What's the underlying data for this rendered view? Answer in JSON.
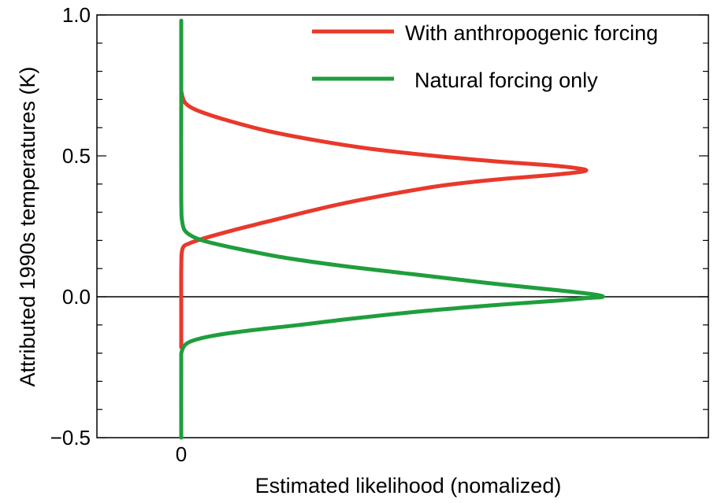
{
  "chart_data": {
    "type": "line",
    "xlabel": "Estimated likelihood (nomalized)",
    "ylabel": "Attributed 1990s temperatures (K)",
    "x_tick_labels": [
      {
        "value": 0,
        "label": "0"
      }
    ],
    "y_ticks": [
      {
        "value": 1.0,
        "label": "1.0"
      },
      {
        "value": 0.5,
        "label": "0.5"
      },
      {
        "value": 0.0,
        "label": "0.0"
      },
      {
        "value": -0.5,
        "label": "−0.5"
      }
    ],
    "ylim": [
      -0.5,
      1.0
    ],
    "xlim": [
      -0.2,
      1.25
    ],
    "grid": false,
    "zero_line": 0.0,
    "legend_position": "top-right",
    "series": [
      {
        "name": "With anthropogenic forcing",
        "color": "#e8392b",
        "points": [
          [
            0.0,
            -0.18
          ],
          [
            0.0,
            -0.05
          ],
          [
            0.0,
            0.1
          ],
          [
            0.003,
            0.17
          ],
          [
            0.02,
            0.19
          ],
          [
            0.06,
            0.21
          ],
          [
            0.12,
            0.235
          ],
          [
            0.2,
            0.265
          ],
          [
            0.28,
            0.295
          ],
          [
            0.38,
            0.33
          ],
          [
            0.5,
            0.365
          ],
          [
            0.62,
            0.395
          ],
          [
            0.74,
            0.415
          ],
          [
            0.86,
            0.43
          ],
          [
            0.93,
            0.44
          ],
          [
            0.96,
            0.448
          ],
          [
            0.94,
            0.456
          ],
          [
            0.88,
            0.466
          ],
          [
            0.75,
            0.48
          ],
          [
            0.6,
            0.5
          ],
          [
            0.45,
            0.525
          ],
          [
            0.32,
            0.555
          ],
          [
            0.2,
            0.59
          ],
          [
            0.1,
            0.63
          ],
          [
            0.04,
            0.66
          ],
          [
            0.015,
            0.68
          ],
          [
            0.005,
            0.7
          ],
          [
            0.0,
            0.73
          ]
        ]
      },
      {
        "name": "Natural forcing only",
        "color": "#1f9e3c",
        "points": [
          [
            0.0,
            -0.5
          ],
          [
            0.0,
            -0.25
          ],
          [
            0.002,
            -0.19
          ],
          [
            0.02,
            -0.16
          ],
          [
            0.07,
            -0.14
          ],
          [
            0.16,
            -0.12
          ],
          [
            0.28,
            -0.1
          ],
          [
            0.42,
            -0.075
          ],
          [
            0.58,
            -0.05
          ],
          [
            0.74,
            -0.03
          ],
          [
            0.88,
            -0.015
          ],
          [
            0.96,
            -0.005
          ],
          [
            1.0,
            0.0
          ],
          [
            0.97,
            0.01
          ],
          [
            0.88,
            0.025
          ],
          [
            0.72,
            0.05
          ],
          [
            0.55,
            0.08
          ],
          [
            0.38,
            0.11
          ],
          [
            0.24,
            0.14
          ],
          [
            0.12,
            0.175
          ],
          [
            0.05,
            0.2
          ],
          [
            0.015,
            0.225
          ],
          [
            0.003,
            0.26
          ],
          [
            0.0,
            0.35
          ],
          [
            0.0,
            0.7
          ],
          [
            0.0,
            0.98
          ]
        ]
      }
    ]
  }
}
